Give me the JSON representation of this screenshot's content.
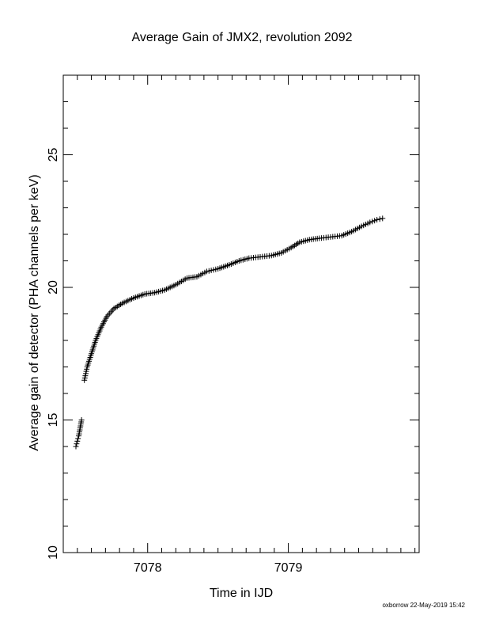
{
  "chart_data": {
    "type": "scatter",
    "title": "Average Gain of JMX2, revolution 2092",
    "xlabel": "Time in IJD",
    "ylabel": "Average gain of detector (PHA channels per keV)",
    "xlim": [
      7077.4,
      7079.93
    ],
    "ylim": [
      10,
      28
    ],
    "x_ticks": [
      7078,
      7079
    ],
    "y_ticks": [
      10,
      15,
      20,
      25
    ],
    "grid": false,
    "marker": "plus",
    "series": [
      {
        "x": [
          7077.49,
          7077.5,
          7077.51,
          7077.52,
          7077.53,
          7077.55,
          7077.57,
          7077.6,
          7077.63,
          7077.67,
          7077.71,
          7077.76,
          7077.82,
          7077.9,
          7077.98,
          7078.05,
          7078.12,
          7078.2,
          7078.28,
          7078.35,
          7078.42,
          7078.5,
          7078.58,
          7078.65,
          7078.72,
          7078.8,
          7078.88,
          7078.95,
          7079.02,
          7079.08,
          7079.15,
          7079.22,
          7079.3,
          7079.38,
          7079.45,
          7079.52,
          7079.58,
          7079.63,
          7079.67
        ],
        "y": [
          14.0,
          14.2,
          14.4,
          14.7,
          15.0,
          16.5,
          17.0,
          17.5,
          18.0,
          18.5,
          18.9,
          19.2,
          19.4,
          19.6,
          19.75,
          19.8,
          19.9,
          20.1,
          20.35,
          20.4,
          20.6,
          20.7,
          20.85,
          21.0,
          21.1,
          21.15,
          21.2,
          21.3,
          21.5,
          21.7,
          21.8,
          21.85,
          21.9,
          21.95,
          22.1,
          22.3,
          22.45,
          22.55,
          22.6
        ]
      }
    ]
  },
  "footer": "oxborrow 22-May-2019 15:42",
  "colors": {
    "ink": "#000000",
    "background": "#ffffff"
  }
}
